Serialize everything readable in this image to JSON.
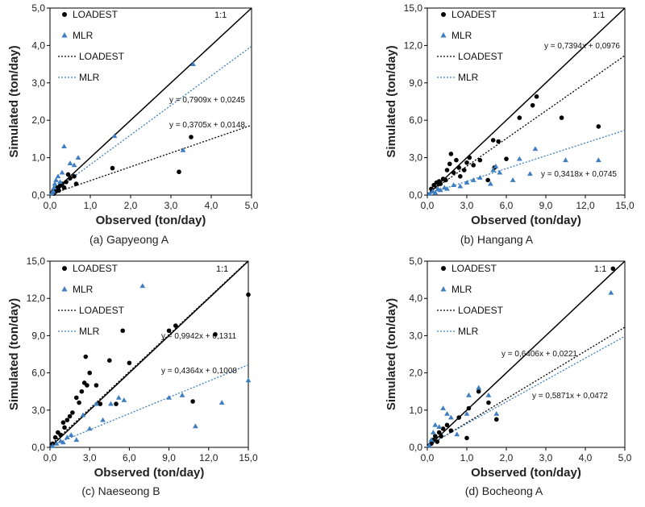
{
  "colors": {
    "loadest": "#000000",
    "mlr": "#3f7fc1",
    "axis": "#000000"
  },
  "chart_data": [
    {
      "type": "scatter",
      "caption": "(a) Gapyeong A",
      "xlabel": "Observed  (ton/day)",
      "ylabel": "Simulated  (ton/day)",
      "xlim": [
        0,
        5
      ],
      "ylim": [
        0,
        5
      ],
      "ticks": [
        0,
        1,
        2,
        3,
        4,
        5
      ],
      "tick_labels": [
        "0,0",
        "1,0",
        "2,0",
        "3,0",
        "4,0",
        "5,0"
      ],
      "one_to_one_label": "1:1",
      "legend": [
        "LOADEST",
        "MLR",
        "LOADEST",
        "MLR"
      ],
      "series": [
        {
          "name": "LOADEST",
          "marker": "circle",
          "x": [
            0.05,
            0.08,
            0.1,
            0.12,
            0.15,
            0.18,
            0.2,
            0.22,
            0.25,
            0.3,
            0.35,
            0.4,
            0.45,
            0.5,
            0.6,
            0.65,
            1.55,
            3.2,
            3.5
          ],
          "y": [
            0.05,
            0.1,
            0.04,
            0.15,
            0.1,
            0.2,
            0.18,
            0.12,
            0.25,
            0.3,
            0.2,
            0.35,
            0.55,
            0.45,
            0.5,
            0.3,
            0.72,
            0.62,
            1.55
          ]
        },
        {
          "name": "MLR",
          "marker": "triangle",
          "x": [
            0.05,
            0.08,
            0.1,
            0.12,
            0.15,
            0.2,
            0.25,
            0.3,
            0.35,
            0.5,
            0.6,
            0.7,
            1.6,
            3.3,
            3.55
          ],
          "y": [
            0.05,
            0.1,
            0.2,
            0.3,
            0.4,
            0.5,
            0.35,
            0.6,
            1.3,
            0.85,
            0.8,
            1.0,
            1.58,
            1.2,
            3.5
          ]
        }
      ],
      "trendlines": [
        {
          "name": "LOADEST",
          "slope": 0.3705,
          "intercept": 0.0148,
          "label": "y = 0,3705x + 0,0148"
        },
        {
          "name": "MLR",
          "slope": 0.7909,
          "intercept": 0.0245,
          "label": "y = 0,7909x + 0,0245"
        }
      ]
    },
    {
      "type": "scatter",
      "caption": "(b) Hangang A",
      "xlabel": "Observed  (ton/day)",
      "ylabel": "Simulated  (ton/day)",
      "xlim": [
        0,
        15
      ],
      "ylim": [
        0,
        15
      ],
      "ticks": [
        0,
        3,
        6,
        9,
        12,
        15
      ],
      "tick_labels": [
        "0,0",
        "3,0",
        "6,0",
        "9,0",
        "12,0",
        "15,0"
      ],
      "one_to_one_label": "1:1",
      "legend": [
        "LOADEST",
        "MLR",
        "LOADEST",
        "MLR"
      ],
      "series": [
        {
          "name": "LOADEST",
          "marker": "circle",
          "x": [
            0.3,
            0.5,
            0.7,
            0.9,
            1.0,
            1.2,
            1.4,
            1.5,
            1.7,
            1.8,
            2.0,
            2.2,
            2.4,
            2.5,
            2.8,
            3.0,
            3.2,
            3.5,
            4.0,
            4.6,
            5.0,
            5.1,
            5.4,
            6.0,
            7.0,
            8.0,
            8.3,
            10.2,
            13.0
          ],
          "y": [
            0.5,
            0.8,
            1.0,
            1.1,
            0.9,
            1.3,
            1.2,
            2.0,
            2.5,
            3.3,
            1.8,
            2.8,
            2.2,
            1.5,
            2.0,
            2.6,
            3.0,
            2.4,
            2.8,
            1.2,
            4.4,
            2.2,
            4.3,
            2.9,
            6.2,
            7.2,
            7.9,
            6.2,
            5.5
          ]
        },
        {
          "name": "MLR",
          "marker": "triangle",
          "x": [
            0.2,
            0.4,
            0.6,
            0.8,
            1.0,
            1.3,
            1.5,
            2.0,
            2.5,
            3.0,
            3.5,
            4.0,
            4.8,
            5.0,
            5.2,
            5.5,
            6.5,
            7.0,
            7.8,
            8.2,
            10.5,
            13.0
          ],
          "y": [
            0.1,
            0.3,
            0.2,
            0.5,
            0.4,
            0.6,
            0.5,
            0.8,
            0.7,
            1.0,
            1.2,
            1.4,
            0.9,
            2.0,
            2.3,
            1.8,
            1.2,
            2.9,
            1.7,
            3.7,
            2.8,
            2.8
          ]
        }
      ],
      "trendlines": [
        {
          "name": "LOADEST",
          "slope": 0.7394,
          "intercept": 0.0976,
          "label": "y = 0,7394x + 0,0976"
        },
        {
          "name": "MLR",
          "slope": 0.3418,
          "intercept": 0.0745,
          "label": "y = 0,3418x + 0,0745"
        }
      ]
    },
    {
      "type": "scatter",
      "caption": "(c) Naeseong B",
      "xlabel": "Observed  (ton/day)",
      "ylabel": "Simulated  (ton/day)",
      "xlim": [
        0,
        15
      ],
      "ylim": [
        0,
        15
      ],
      "ticks": [
        0,
        3,
        6,
        9,
        12,
        15
      ],
      "tick_labels": [
        "0,0",
        "3,0",
        "6,0",
        "9,0",
        "12,0",
        "15,0"
      ],
      "one_to_one_label": "1:1",
      "legend": [
        "LOADEST",
        "MLR",
        "LOADEST",
        "MLR"
      ],
      "series": [
        {
          "name": "LOADEST",
          "marker": "circle",
          "x": [
            0.2,
            0.4,
            0.6,
            0.8,
            1.0,
            1.1,
            1.3,
            1.5,
            1.7,
            2.0,
            2.2,
            2.4,
            2.6,
            2.7,
            2.8,
            3.0,
            3.5,
            3.8,
            4.5,
            5.0,
            5.5,
            6.0,
            9.0,
            9.5,
            10.8,
            12.5,
            15.0
          ],
          "y": [
            0.3,
            0.8,
            1.2,
            1.0,
            2.0,
            1.6,
            2.2,
            2.5,
            2.8,
            4.0,
            3.6,
            4.5,
            5.2,
            7.3,
            5.0,
            6.0,
            5.0,
            3.5,
            7.0,
            3.5,
            9.4,
            6.8,
            9.4,
            9.8,
            3.7,
            9.1,
            12.3
          ]
        },
        {
          "name": "MLR",
          "marker": "triangle",
          "x": [
            0.2,
            0.5,
            0.8,
            1.0,
            1.3,
            1.6,
            2.0,
            2.5,
            3.0,
            3.5,
            4.0,
            4.6,
            5.2,
            5.6,
            7.0,
            9.0,
            10.0,
            11.0,
            13.0,
            15.0
          ],
          "y": [
            0.1,
            0.3,
            0.5,
            0.4,
            0.8,
            1.0,
            0.6,
            2.6,
            1.5,
            3.5,
            2.2,
            3.5,
            4.0,
            3.8,
            13.0,
            4.0,
            4.2,
            1.7,
            3.6,
            5.4
          ]
        }
      ],
      "trendlines": [
        {
          "name": "LOADEST",
          "slope": 0.9942,
          "intercept": 0.1311,
          "label": "y = 0,9942x + 0,1311"
        },
        {
          "name": "MLR",
          "slope": 0.4364,
          "intercept": 0.1008,
          "label": "y = 0,4364x + 0,1008"
        }
      ]
    },
    {
      "type": "scatter",
      "caption": "(d) Bocheong A",
      "xlabel": "Observed  (ton/day)",
      "ylabel": "Simulated  (ton/day)",
      "xlim": [
        0,
        5
      ],
      "ylim": [
        0,
        5
      ],
      "ticks": [
        0,
        1,
        2,
        3,
        4,
        5
      ],
      "tick_labels": [
        "0,0",
        "1,0",
        "2,0",
        "3,0",
        "4,0",
        "5,0"
      ],
      "one_to_one_label": "1:1",
      "legend": [
        "LOADEST",
        "MLR",
        "LOADEST",
        "MLR"
      ],
      "series": [
        {
          "name": "LOADEST",
          "marker": "circle",
          "x": [
            0.05,
            0.1,
            0.15,
            0.2,
            0.25,
            0.3,
            0.35,
            0.4,
            0.5,
            0.6,
            0.8,
            1.0,
            1.05,
            1.3,
            1.55,
            1.75,
            4.7
          ],
          "y": [
            0.05,
            0.1,
            0.2,
            0.3,
            0.15,
            0.4,
            0.3,
            0.5,
            0.6,
            0.45,
            0.8,
            0.25,
            1.05,
            1.5,
            1.2,
            0.75,
            4.8
          ]
        },
        {
          "name": "MLR",
          "marker": "triangle",
          "x": [
            0.05,
            0.1,
            0.15,
            0.2,
            0.3,
            0.4,
            0.5,
            0.6,
            0.75,
            1.0,
            1.05,
            1.3,
            1.55,
            1.75,
            4.65
          ],
          "y": [
            0.05,
            0.2,
            0.4,
            0.6,
            0.55,
            1.05,
            0.9,
            0.8,
            0.35,
            0.9,
            1.4,
            1.6,
            1.4,
            0.9,
            4.15
          ]
        }
      ],
      "trendlines": [
        {
          "name": "LOADEST",
          "slope": 0.6406,
          "intercept": 0.0221,
          "label": "y = 0,6406x + 0,0221"
        },
        {
          "name": "MLR",
          "slope": 0.5871,
          "intercept": 0.0472,
          "label": "y = 0,5871x + 0,0472"
        }
      ]
    }
  ]
}
